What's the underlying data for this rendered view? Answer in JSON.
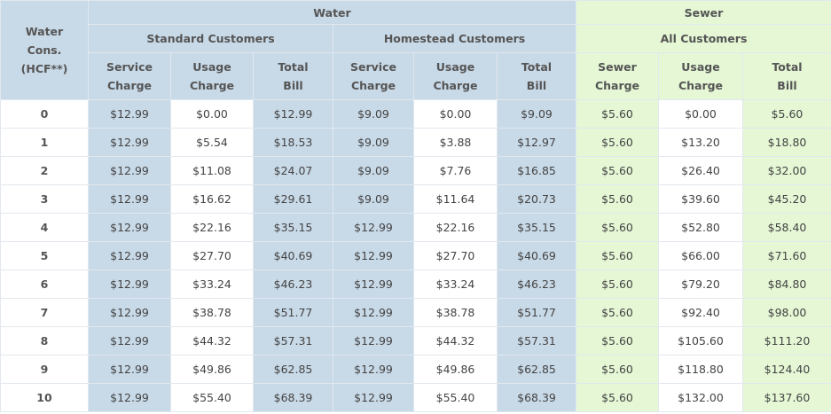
{
  "header": {
    "first_col": [
      "Water",
      "Cons.",
      "(HCF**)"
    ],
    "water": "Water",
    "sewer": "Sewer",
    "standard": "Standard Customers",
    "homestead": "Homestead Customers",
    "all": "All Customers",
    "cols": [
      [
        "Service",
        "Charge"
      ],
      [
        "Usage",
        "Charge"
      ],
      [
        "Total",
        "Bill"
      ],
      [
        "Service",
        "Charge"
      ],
      [
        "Usage",
        "Charge"
      ],
      [
        "Total",
        "Bill"
      ],
      [
        "Sewer",
        "Charge"
      ],
      [
        "Usage",
        "Charge"
      ],
      [
        "Total",
        "Bill"
      ]
    ]
  },
  "rows": [
    [
      "0",
      "$12.99",
      "$0.00",
      "$12.99",
      "$9.09",
      "$0.00",
      "$9.09",
      "$5.60",
      "$0.00",
      "$5.60"
    ],
    [
      "1",
      "$12.99",
      "$5.54",
      "$18.53",
      "$9.09",
      "$3.88",
      "$12.97",
      "$5.60",
      "$13.20",
      "$18.80"
    ],
    [
      "2",
      "$12.99",
      "$11.08",
      "$24.07",
      "$9.09",
      "$7.76",
      "$16.85",
      "$5.60",
      "$26.40",
      "$32.00"
    ],
    [
      "3",
      "$12.99",
      "$16.62",
      "$29.61",
      "$9.09",
      "$11.64",
      "$20.73",
      "$5.60",
      "$39.60",
      "$45.20"
    ],
    [
      "4",
      "$12.99",
      "$22.16",
      "$35.15",
      "$12.99",
      "$22.16",
      "$35.15",
      "$5.60",
      "$52.80",
      "$58.40"
    ],
    [
      "5",
      "$12.99",
      "$27.70",
      "$40.69",
      "$12.99",
      "$27.70",
      "$40.69",
      "$5.60",
      "$66.00",
      "$71.60"
    ],
    [
      "6",
      "$12.99",
      "$33.24",
      "$46.23",
      "$12.99",
      "$33.24",
      "$46.23",
      "$5.60",
      "$79.20",
      "$84.80"
    ],
    [
      "7",
      "$12.99",
      "$38.78",
      "$51.77",
      "$12.99",
      "$38.78",
      "$51.77",
      "$5.60",
      "$92.40",
      "$98.00"
    ],
    [
      "8",
      "$12.99",
      "$44.32",
      "$57.31",
      "$12.99",
      "$44.32",
      "$57.31",
      "$5.60",
      "$105.60",
      "$111.20"
    ],
    [
      "9",
      "$12.99",
      "$49.86",
      "$62.85",
      "$12.99",
      "$49.86",
      "$62.85",
      "$5.60",
      "$118.80",
      "$124.40"
    ],
    [
      "10",
      "$12.99",
      "$55.40",
      "$68.39",
      "$12.99",
      "$55.40",
      "$68.39",
      "$5.60",
      "$132.00",
      "$137.60"
    ]
  ],
  "colors": {
    "water_bg": "#c8d9e7",
    "sewer_bg": "#e5f7d5",
    "text": "#444444"
  }
}
